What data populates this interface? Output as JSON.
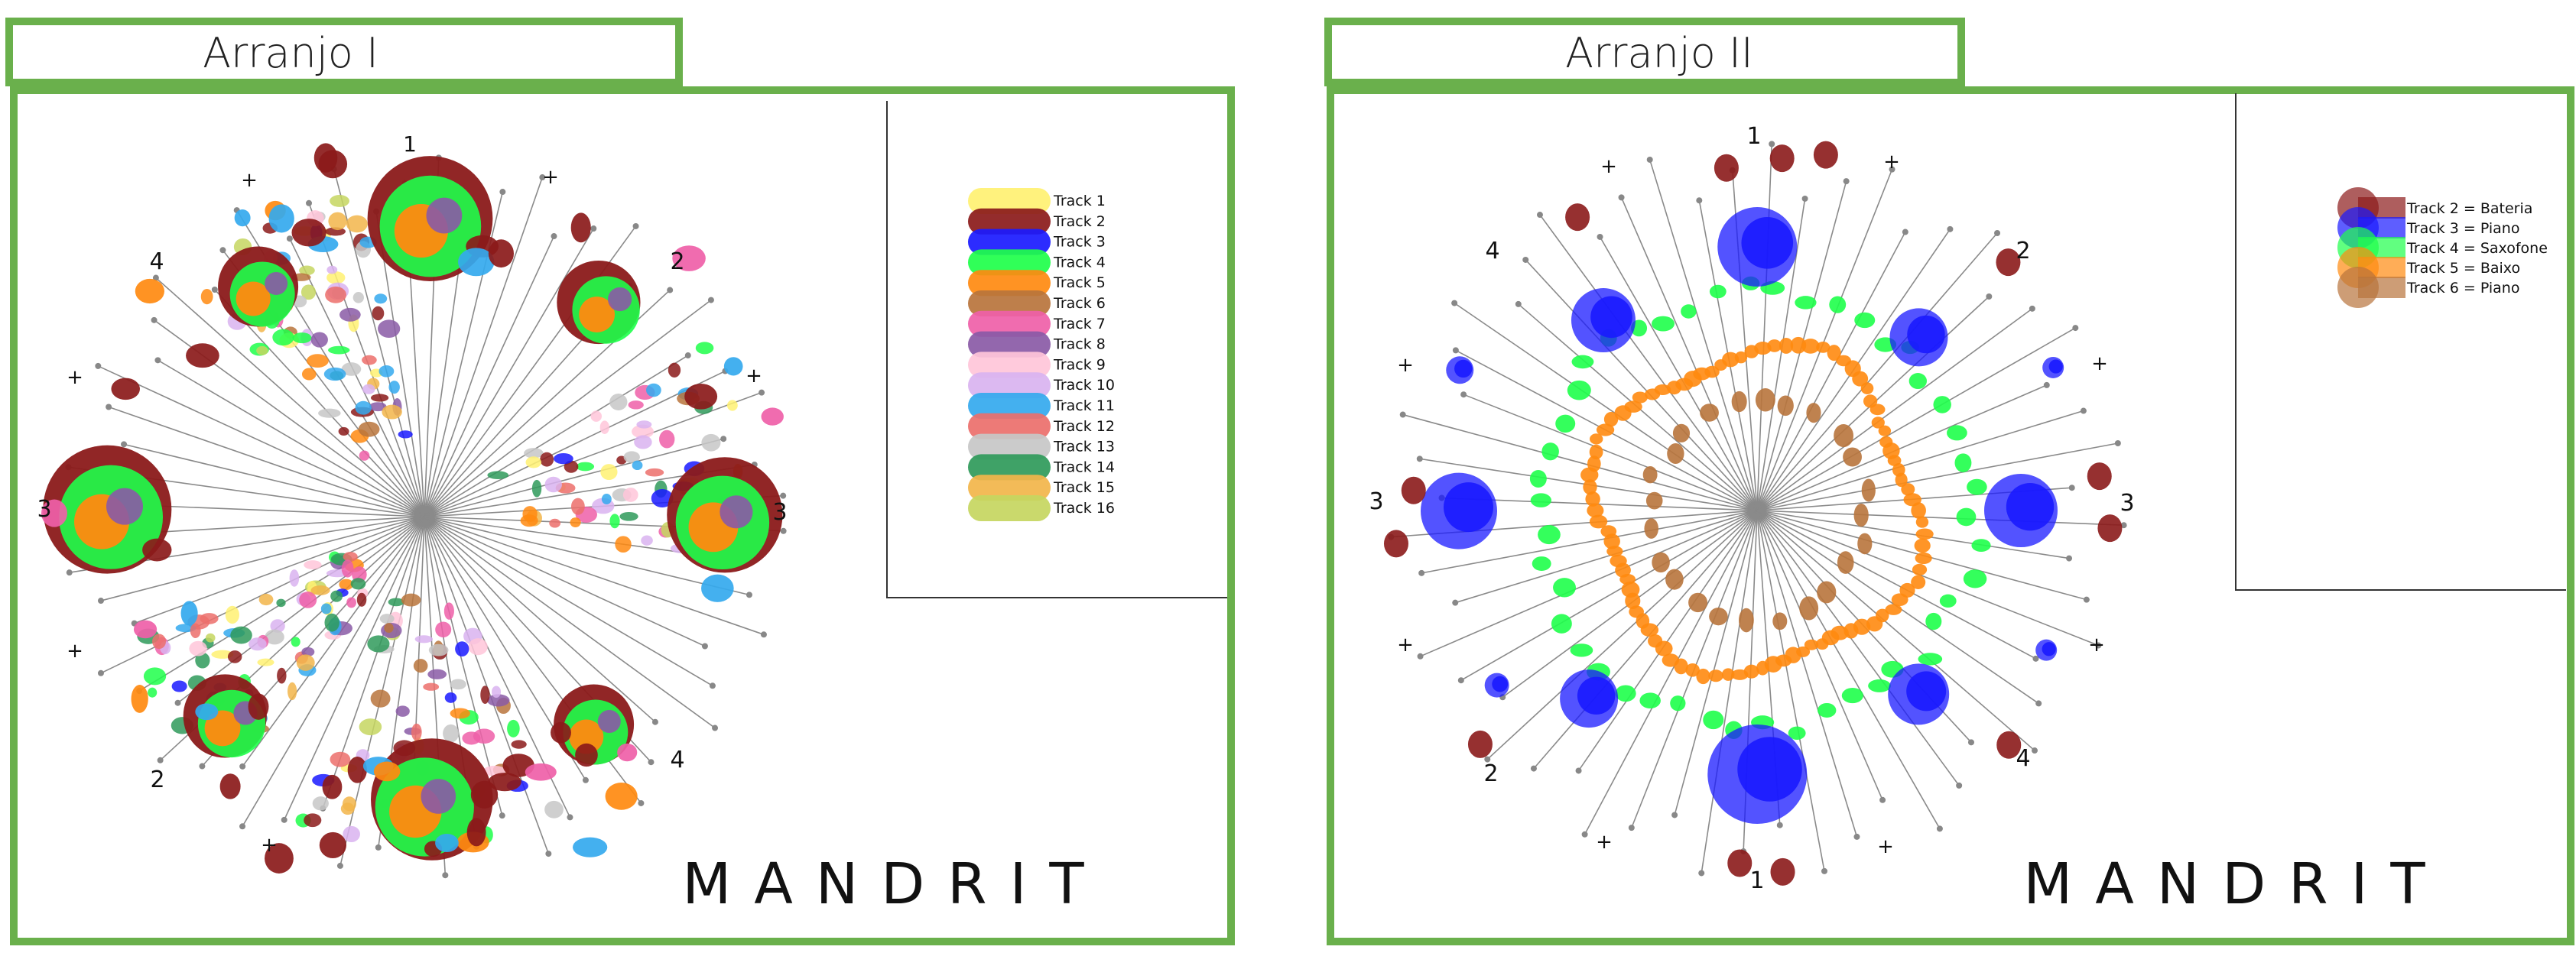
{
  "panels": [
    {
      "title": "Arranjo I",
      "brand": "MANDRIT",
      "direction_labels": [
        "1",
        "2",
        "3",
        "4",
        "3",
        "2",
        "+",
        "+",
        "+",
        "+",
        "+",
        "+",
        "4"
      ],
      "legend": [
        {
          "label": "Track 1",
          "color": "#fff172"
        },
        {
          "label": "Track 2",
          "color": "#8b1a1a"
        },
        {
          "label": "Track 3",
          "color": "#1a1aff"
        },
        {
          "label": "Track 4",
          "color": "#1eff4a"
        },
        {
          "label": "Track 5",
          "color": "#ff8a10"
        },
        {
          "label": "Track 6",
          "color": "#b8743c"
        },
        {
          "label": "Track 7",
          "color": "#ef5fa8"
        },
        {
          "label": "Track 8",
          "color": "#8a5aa6"
        },
        {
          "label": "Track 9",
          "color": "#ffc6d9"
        },
        {
          "label": "Track 10",
          "color": "#d9b3f0"
        },
        {
          "label": "Track 11",
          "color": "#34a9ee"
        },
        {
          "label": "Track 12",
          "color": "#ec6f6b"
        },
        {
          "label": "Track 13",
          "color": "#c7c7c7"
        },
        {
          "label": "Track 14",
          "color": "#2f9a5a"
        },
        {
          "label": "Track 15",
          "color": "#f2b54a"
        },
        {
          "label": "Track 16",
          "color": "#c5d660"
        }
      ]
    },
    {
      "title": "Arranjo II",
      "brand": "MANDRIT",
      "direction_labels": [
        "1",
        "2",
        "3",
        "4",
        "1",
        "4",
        "3",
        "2",
        "+",
        "+",
        "+",
        "+",
        "+",
        "+",
        "+",
        "+"
      ],
      "legend": [
        {
          "label": "Track 2 = Bateria",
          "color": "#8b1a1a"
        },
        {
          "label": "Track 3 = Piano",
          "color": "#1a1aff"
        },
        {
          "label": "Track 4 = Saxofone",
          "color": "#1eff4a"
        },
        {
          "label": "Track 5 = Baixo",
          "color": "#ff8a10"
        },
        {
          "label": "Track 6 = Piano",
          "color": "#b8743c"
        }
      ]
    }
  ]
}
